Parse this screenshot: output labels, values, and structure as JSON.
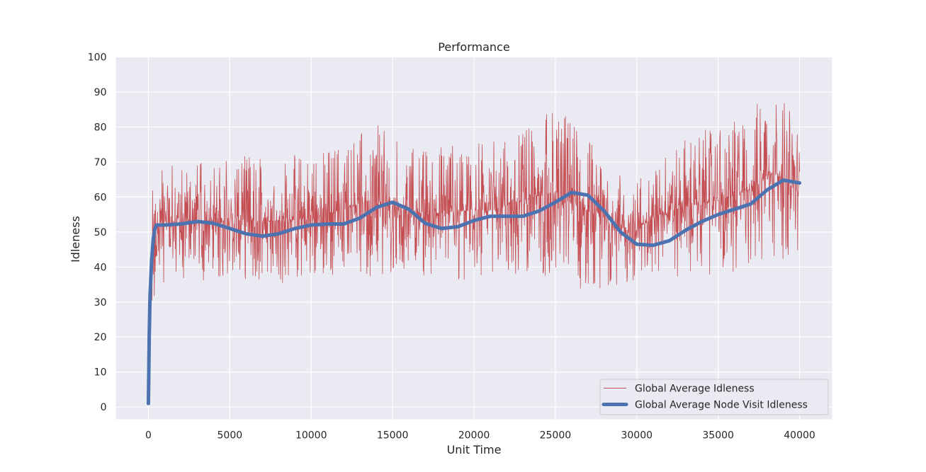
{
  "chart_data": {
    "type": "line",
    "title": "Performance",
    "xlabel": "Unit Time",
    "ylabel": "Idleness",
    "xlim": [
      -2000,
      42000
    ],
    "ylim": [
      -3.5,
      100
    ],
    "xticks": [
      0,
      5000,
      10000,
      15000,
      20000,
      25000,
      30000,
      35000,
      40000
    ],
    "yticks": [
      0,
      10,
      20,
      30,
      40,
      50,
      60,
      70,
      80,
      90,
      100
    ],
    "grid": true,
    "legend_position": "lower right",
    "colors": {
      "background": "#eaeaf2",
      "grid": "#ffffff",
      "idleness": "#c44e52",
      "node_visit": "#4c72b0"
    },
    "series": [
      {
        "name": "Global Average Idleness",
        "line_width": "thin",
        "noisy": true,
        "x_range": [
          0,
          40000
        ],
        "approx_envelope": {
          "x": [
            0,
            300,
            1000,
            3000,
            5000,
            7000,
            9000,
            11000,
            13000,
            14000,
            15000,
            17000,
            19000,
            21000,
            23000,
            25000,
            26000,
            27000,
            29000,
            30000,
            31000,
            33000,
            35000,
            37000,
            38000,
            38500,
            39000,
            40000
          ],
          "low": [
            1,
            30,
            36,
            36,
            36,
            34,
            35,
            36,
            38,
            37,
            38,
            36,
            36,
            36,
            38,
            37,
            33,
            34,
            34,
            36,
            38,
            37,
            38,
            39,
            40,
            42,
            42,
            42
          ],
          "high": [
            1,
            75,
            70,
            70,
            72,
            72,
            72,
            74,
            79,
            81,
            77,
            74,
            76,
            76,
            80,
            86,
            83,
            78,
            68,
            66,
            70,
            78,
            80,
            85,
            92,
            93,
            88,
            80
          ]
        }
      },
      {
        "name": "Global Average Node Visit Idleness",
        "line_width": "thick",
        "points": [
          [
            0,
            1
          ],
          [
            20,
            8
          ],
          [
            50,
            20
          ],
          [
            100,
            32
          ],
          [
            200,
            42
          ],
          [
            300,
            48
          ],
          [
            400,
            51
          ],
          [
            500,
            52
          ],
          [
            1000,
            52
          ],
          [
            2000,
            52.3
          ],
          [
            3000,
            53
          ],
          [
            4000,
            52.5
          ],
          [
            5000,
            51
          ],
          [
            6000,
            49.5
          ],
          [
            7000,
            48.8
          ],
          [
            8000,
            49.5
          ],
          [
            9000,
            51
          ],
          [
            10000,
            52
          ],
          [
            11000,
            52.3
          ],
          [
            12000,
            52.3
          ],
          [
            13000,
            54
          ],
          [
            14000,
            57
          ],
          [
            15000,
            58.5
          ],
          [
            16000,
            56.5
          ],
          [
            17000,
            52.5
          ],
          [
            18000,
            51
          ],
          [
            19000,
            51.5
          ],
          [
            20000,
            53.3
          ],
          [
            21000,
            54.5
          ],
          [
            22000,
            54.5
          ],
          [
            23000,
            54.5
          ],
          [
            24000,
            56
          ],
          [
            25000,
            58.5
          ],
          [
            26000,
            61.3
          ],
          [
            27000,
            60.5
          ],
          [
            28000,
            56
          ],
          [
            29000,
            50
          ],
          [
            30000,
            46.5
          ],
          [
            31000,
            46.2
          ],
          [
            32000,
            47.5
          ],
          [
            33000,
            50.5
          ],
          [
            34000,
            53
          ],
          [
            35000,
            55
          ],
          [
            36000,
            56.5
          ],
          [
            37000,
            58
          ],
          [
            38000,
            62
          ],
          [
            39000,
            64.8
          ],
          [
            40000,
            64
          ]
        ]
      }
    ]
  }
}
